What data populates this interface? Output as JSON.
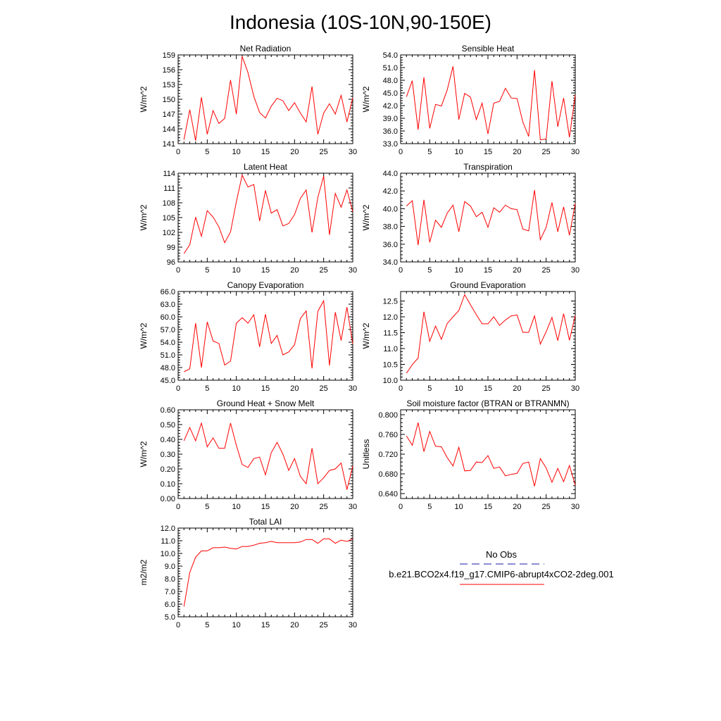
{
  "title": "Indonesia (10S-10N,90-150E)",
  "colors": {
    "model_line": "#ff0000",
    "obs_line": "#1a1aa6",
    "axis": "#000000"
  },
  "legend": {
    "obs_label": "No Obs",
    "model_label": "b.e21.BCO2x4.f19_g17.CMIP6-abrupt4xCO2-2deg.001"
  },
  "chart_data": [
    {
      "type": "line",
      "title": "Net Radiation",
      "xlabel": "",
      "ylabel": "W/m^2",
      "xlim": [
        0,
        30
      ],
      "ylim": [
        141,
        159
      ],
      "xticks": [
        0,
        5,
        10,
        15,
        20,
        25,
        30
      ],
      "xtick_labels": [
        "0",
        "5",
        "10",
        "15",
        "20",
        "25",
        "30"
      ],
      "yticks": [
        141,
        144,
        147,
        150,
        153,
        156,
        159
      ],
      "ytick_labels": [
        "141",
        "144",
        "147",
        "150",
        "153",
        "156",
        "159"
      ],
      "x": [
        1,
        2,
        3,
        4,
        5,
        6,
        7,
        8,
        9,
        10,
        11,
        12,
        13,
        14,
        15,
        16,
        17,
        18,
        19,
        20,
        21,
        22,
        23,
        24,
        25,
        26,
        27,
        28,
        29,
        30
      ],
      "series": [
        {
          "name": "b.e21.BCO2x4.f19_g17.CMIP6-abrupt4xCO2-2deg.001",
          "values": [
            141.8,
            147.9,
            141.6,
            150.4,
            142.9,
            147.7,
            145.1,
            146.1,
            153.9,
            147.0,
            158.7,
            155.4,
            150.6,
            147.3,
            146.2,
            148.6,
            150.2,
            149.7,
            147.7,
            149.3,
            147.2,
            145.4,
            152.6,
            142.9,
            147.2,
            149.1,
            147.0,
            150.8,
            145.4,
            150.3
          ]
        }
      ]
    },
    {
      "type": "line",
      "title": "Sensible Heat",
      "xlabel": "",
      "ylabel": "W/m^2",
      "xlim": [
        0,
        30
      ],
      "ylim": [
        33.0,
        54.0
      ],
      "xticks": [
        0,
        5,
        10,
        15,
        20,
        25,
        30
      ],
      "xtick_labels": [
        "0",
        "5",
        "10",
        "15",
        "20",
        "25",
        "30"
      ],
      "yticks": [
        33,
        36,
        39,
        42,
        45,
        48,
        51,
        54
      ],
      "ytick_labels": [
        "33.0",
        "36.0",
        "39.0",
        "42.0",
        "45.0",
        "48.0",
        "51.0",
        "54.0"
      ],
      "x": [
        1,
        2,
        3,
        4,
        5,
        6,
        7,
        8,
        9,
        10,
        11,
        12,
        13,
        14,
        15,
        16,
        17,
        18,
        19,
        20,
        21,
        22,
        23,
        24,
        25,
        26,
        27,
        28,
        29,
        30
      ],
      "series": [
        {
          "name": "b.e21.BCO2x4.f19_g17.CMIP6-abrupt4xCO2-2deg.001",
          "values": [
            44.1,
            47.9,
            36.3,
            48.7,
            36.6,
            42.3,
            41.9,
            45.7,
            51.3,
            38.7,
            44.9,
            44.0,
            38.7,
            42.6,
            35.3,
            42.6,
            43.0,
            46.1,
            43.8,
            43.7,
            38.1,
            34.7,
            50.4,
            33.9,
            34.1,
            47.8,
            37.0,
            43.8,
            34.5,
            44.5
          ]
        }
      ]
    },
    {
      "type": "line",
      "title": "Latent Heat",
      "xlabel": "",
      "ylabel": "W/m^2",
      "xlim": [
        0,
        30
      ],
      "ylim": [
        96,
        114
      ],
      "xticks": [
        0,
        5,
        10,
        15,
        20,
        25,
        30
      ],
      "xtick_labels": [
        "0",
        "5",
        "10",
        "15",
        "20",
        "25",
        "30"
      ],
      "yticks": [
        96,
        99,
        102,
        105,
        108,
        111,
        114
      ],
      "ytick_labels": [
        "96",
        "99",
        "102",
        "105",
        "108",
        "111",
        "114"
      ],
      "x": [
        1,
        2,
        3,
        4,
        5,
        6,
        7,
        8,
        9,
        10,
        11,
        12,
        13,
        14,
        15,
        16,
        17,
        18,
        19,
        20,
        21,
        22,
        23,
        24,
        25,
        26,
        27,
        28,
        29,
        30
      ],
      "series": [
        {
          "name": "b.e21.BCO2x4.f19_g17.CMIP6-abrupt4xCO2-2deg.001",
          "values": [
            97.7,
            99.5,
            105.1,
            101.2,
            106.4,
            105.1,
            103.1,
            99.9,
            102.1,
            108.2,
            113.6,
            111.2,
            111.7,
            104.3,
            110.5,
            105.9,
            106.6,
            103.3,
            103.8,
            105.6,
            108.9,
            110.6,
            102.0,
            109.1,
            113.4,
            101.5,
            109.9,
            107.1,
            110.6,
            106.2
          ]
        }
      ]
    },
    {
      "type": "line",
      "title": "Transpiration",
      "xlabel": "",
      "ylabel": "W/m^2",
      "xlim": [
        0,
        30
      ],
      "ylim": [
        34.0,
        44.0
      ],
      "xticks": [
        0,
        5,
        10,
        15,
        20,
        25,
        30
      ],
      "xtick_labels": [
        "0",
        "5",
        "10",
        "15",
        "20",
        "25",
        "30"
      ],
      "yticks": [
        34,
        36,
        38,
        40,
        42,
        44
      ],
      "ytick_labels": [
        "34.0",
        "36.0",
        "38.0",
        "40.0",
        "42.0",
        "44.0"
      ],
      "x": [
        1,
        2,
        3,
        4,
        5,
        6,
        7,
        8,
        9,
        10,
        11,
        12,
        13,
        14,
        15,
        16,
        17,
        18,
        19,
        20,
        21,
        22,
        23,
        24,
        25,
        26,
        27,
        28,
        29,
        30
      ],
      "series": [
        {
          "name": "b.e21.BCO2x4.f19_g17.CMIP6-abrupt4xCO2-2deg.001",
          "values": [
            40.3,
            40.9,
            35.9,
            41.0,
            36.2,
            38.7,
            37.9,
            39.5,
            40.4,
            37.4,
            40.8,
            40.3,
            39.1,
            39.6,
            37.9,
            40.1,
            39.6,
            40.4,
            40.0,
            39.9,
            37.7,
            37.5,
            42.1,
            36.5,
            37.9,
            40.7,
            37.4,
            40.2,
            37.0,
            40.6
          ]
        }
      ]
    },
    {
      "type": "line",
      "title": "Canopy Evaporation",
      "xlabel": "",
      "ylabel": "W/m^2",
      "xlim": [
        0,
        30
      ],
      "ylim": [
        45.0,
        66.0
      ],
      "xticks": [
        0,
        5,
        10,
        15,
        20,
        25,
        30
      ],
      "xtick_labels": [
        "0",
        "5",
        "10",
        "15",
        "20",
        "25",
        "30"
      ],
      "yticks": [
        45,
        48,
        51,
        54,
        57,
        60,
        63,
        66
      ],
      "ytick_labels": [
        "45.0",
        "48.0",
        "51.0",
        "54.0",
        "57.0",
        "60.0",
        "63.0",
        "66.0"
      ],
      "x": [
        1,
        2,
        3,
        4,
        5,
        6,
        7,
        8,
        9,
        10,
        11,
        12,
        13,
        14,
        15,
        16,
        17,
        18,
        19,
        20,
        21,
        22,
        23,
        24,
        25,
        26,
        27,
        28,
        29,
        30
      ],
      "series": [
        {
          "name": "b.e21.BCO2x4.f19_g17.CMIP6-abrupt4xCO2-2deg.001",
          "values": [
            47.0,
            47.7,
            58.5,
            48.0,
            58.8,
            54.3,
            53.7,
            48.6,
            49.5,
            58.5,
            59.8,
            58.5,
            60.5,
            52.9,
            60.6,
            53.7,
            55.6,
            51.0,
            51.7,
            53.4,
            59.6,
            61.4,
            47.8,
            61.3,
            63.8,
            48.5,
            61.1,
            54.4,
            62.3,
            53.6
          ]
        }
      ]
    },
    {
      "type": "line",
      "title": "Ground Evaporation",
      "xlabel": "",
      "ylabel": "W/m^2",
      "xlim": [
        0,
        30
      ],
      "ylim": [
        10.0,
        12.8
      ],
      "xticks": [
        0,
        5,
        10,
        15,
        20,
        25,
        30
      ],
      "xtick_labels": [
        "0",
        "5",
        "10",
        "15",
        "20",
        "25",
        "30"
      ],
      "yticks": [
        10.0,
        10.5,
        11.0,
        11.5,
        12.0,
        12.5
      ],
      "ytick_labels": [
        "10.0",
        "10.5",
        "11.0",
        "11.5",
        "12.0",
        "12.5"
      ],
      "x": [
        1,
        2,
        3,
        4,
        5,
        6,
        7,
        8,
        9,
        10,
        11,
        12,
        13,
        14,
        15,
        16,
        17,
        18,
        19,
        20,
        21,
        22,
        23,
        24,
        25,
        26,
        27,
        28,
        29,
        30
      ],
      "series": [
        {
          "name": "b.e21.BCO2x4.f19_g17.CMIP6-abrupt4xCO2-2deg.001",
          "values": [
            10.22,
            10.49,
            10.7,
            12.16,
            11.23,
            11.71,
            11.29,
            11.79,
            12.0,
            12.2,
            12.7,
            12.38,
            12.07,
            11.78,
            11.78,
            12.0,
            11.73,
            11.9,
            12.03,
            12.06,
            11.51,
            11.51,
            12.03,
            11.14,
            11.53,
            11.98,
            11.25,
            12.1,
            11.26,
            12.04
          ]
        }
      ]
    },
    {
      "type": "line",
      "title": "Ground Heat + Snow Melt",
      "xlabel": "",
      "ylabel": "W/m^2",
      "xlim": [
        0,
        30
      ],
      "ylim": [
        0.0,
        0.6
      ],
      "xticks": [
        0,
        5,
        10,
        15,
        20,
        25,
        30
      ],
      "xtick_labels": [
        "0",
        "5",
        "10",
        "15",
        "20",
        "25",
        "30"
      ],
      "yticks": [
        0.0,
        0.1,
        0.2,
        0.3,
        0.4,
        0.5,
        0.6
      ],
      "ytick_labels": [
        "0.00",
        "0.10",
        "0.20",
        "0.30",
        "0.40",
        "0.50",
        "0.60"
      ],
      "x": [
        1,
        2,
        3,
        4,
        5,
        6,
        7,
        8,
        9,
        10,
        11,
        12,
        13,
        14,
        15,
        16,
        17,
        18,
        19,
        20,
        21,
        22,
        23,
        24,
        25,
        26,
        27,
        28,
        29,
        30
      ],
      "series": [
        {
          "name": "b.e21.BCO2x4.f19_g17.CMIP6-abrupt4xCO2-2deg.001",
          "values": [
            0.39,
            0.48,
            0.39,
            0.51,
            0.35,
            0.41,
            0.34,
            0.34,
            0.51,
            0.36,
            0.23,
            0.21,
            0.27,
            0.28,
            0.16,
            0.31,
            0.38,
            0.3,
            0.19,
            0.27,
            0.15,
            0.1,
            0.34,
            0.1,
            0.14,
            0.19,
            0.2,
            0.24,
            0.06,
            0.22
          ]
        }
      ]
    },
    {
      "type": "line",
      "title": "Soil moisture factor (BTRAN or BTRANMN)",
      "xlabel": "",
      "ylabel": "Unitless",
      "xlim": [
        0,
        30
      ],
      "ylim": [
        0.63,
        0.81
      ],
      "xticks": [
        0,
        5,
        10,
        15,
        20,
        25,
        30
      ],
      "xtick_labels": [
        "0",
        "5",
        "10",
        "15",
        "20",
        "25",
        "30"
      ],
      "yticks": [
        0.64,
        0.68,
        0.72,
        0.76,
        0.8
      ],
      "ytick_labels": [
        "0.640",
        "0.680",
        "0.720",
        "0.760",
        "0.800"
      ],
      "x": [
        1,
        2,
        3,
        4,
        5,
        6,
        7,
        8,
        9,
        10,
        11,
        12,
        13,
        14,
        15,
        16,
        17,
        18,
        19,
        20,
        21,
        22,
        23,
        24,
        25,
        26,
        27,
        28,
        29,
        30
      ],
      "series": [
        {
          "name": "b.e21.BCO2x4.f19_g17.CMIP6-abrupt4xCO2-2deg.001",
          "values": [
            0.757,
            0.738,
            0.784,
            0.725,
            0.766,
            0.736,
            0.735,
            0.713,
            0.696,
            0.734,
            0.686,
            0.687,
            0.704,
            0.703,
            0.717,
            0.691,
            0.694,
            0.676,
            0.679,
            0.681,
            0.701,
            0.704,
            0.655,
            0.711,
            0.692,
            0.663,
            0.691,
            0.664,
            0.697,
            0.657
          ]
        }
      ]
    },
    {
      "type": "line",
      "title": "Total LAI",
      "xlabel": "",
      "ylabel": "m2/m2",
      "xlim": [
        0,
        30
      ],
      "ylim": [
        5.0,
        12.0
      ],
      "xticks": [
        0,
        5,
        10,
        15,
        20,
        25,
        30
      ],
      "xtick_labels": [
        "0",
        "5",
        "10",
        "15",
        "20",
        "25",
        "30"
      ],
      "yticks": [
        5,
        6,
        7,
        8,
        9,
        10,
        11,
        12
      ],
      "ytick_labels": [
        "5.0",
        "6.0",
        "7.0",
        "8.0",
        "9.0",
        "10.0",
        "11.0",
        "12.0"
      ],
      "x": [
        1,
        2,
        3,
        4,
        5,
        6,
        7,
        8,
        9,
        10,
        11,
        12,
        13,
        14,
        15,
        16,
        17,
        18,
        19,
        20,
        21,
        22,
        23,
        24,
        25,
        26,
        27,
        28,
        29,
        30
      ],
      "series": [
        {
          "name": "b.e21.BCO2x4.f19_g17.CMIP6-abrupt4xCO2-2deg.001",
          "values": [
            5.8,
            8.5,
            9.7,
            10.2,
            10.2,
            10.45,
            10.45,
            10.5,
            10.4,
            10.35,
            10.55,
            10.55,
            10.65,
            10.8,
            10.85,
            10.95,
            10.85,
            10.85,
            10.85,
            10.85,
            10.9,
            11.1,
            11.1,
            10.8,
            11.15,
            11.15,
            10.8,
            11.05,
            10.95,
            11.15
          ]
        }
      ]
    }
  ]
}
